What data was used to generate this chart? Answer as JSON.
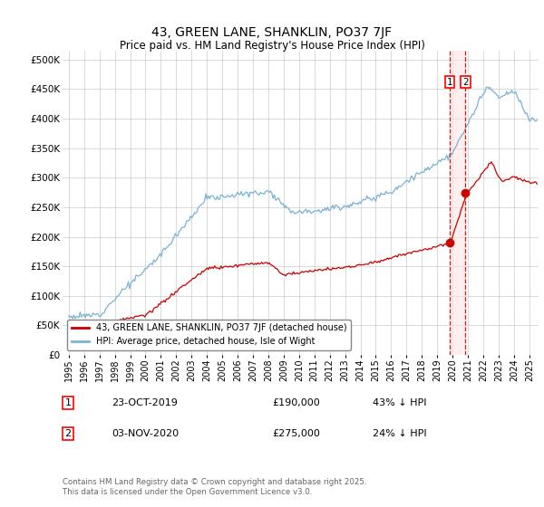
{
  "title": "43, GREEN LANE, SHANKLIN, PO37 7JF",
  "subtitle": "Price paid vs. HM Land Registry's House Price Index (HPI)",
  "ylabel_ticks": [
    "£0",
    "£50K",
    "£100K",
    "£150K",
    "£200K",
    "£250K",
    "£300K",
    "£350K",
    "£400K",
    "£450K",
    "£500K"
  ],
  "ytick_values": [
    0,
    50000,
    100000,
    150000,
    200000,
    250000,
    300000,
    350000,
    400000,
    450000,
    500000
  ],
  "ylim": [
    0,
    515000
  ],
  "hpi_color": "#7ab3d4",
  "price_color": "#cc0000",
  "dashed_line_color": "#cc0000",
  "purchase1_price": 190000,
  "purchase1_date": "23-OCT-2019",
  "purchase1_label": "43% ↓ HPI",
  "purchase2_price": 275000,
  "purchase2_date": "03-NOV-2020",
  "purchase2_label": "24% ↓ HPI",
  "purchase1_x": 2019.81,
  "purchase2_x": 2020.84,
  "legend_line1": "43, GREEN LANE, SHANKLIN, PO37 7JF (detached house)",
  "legend_line2": "HPI: Average price, detached house, Isle of Wight",
  "footer": "Contains HM Land Registry data © Crown copyright and database right 2025.\nThis data is licensed under the Open Government Licence v3.0.",
  "background_color": "#ffffff",
  "grid_color": "#cccccc",
  "xlim_left": 1994.6,
  "xlim_right": 2025.6
}
